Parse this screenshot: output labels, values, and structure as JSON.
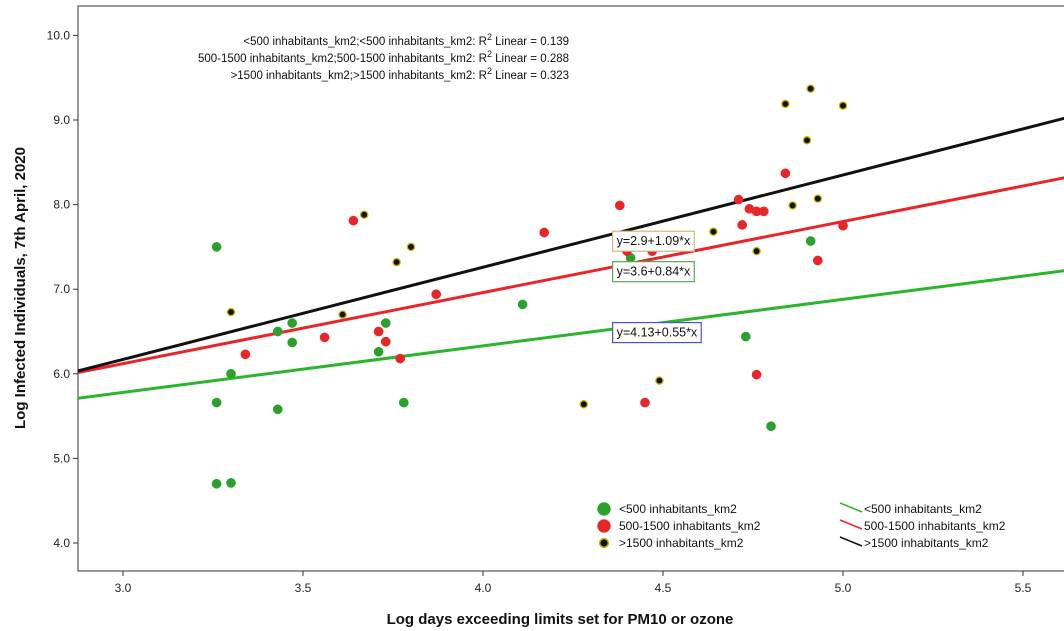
{
  "chart_data": {
    "type": "scatter",
    "xlabel": "Log days exceeding limits set for PM10 or ozone",
    "ylabel": "Log Infected Individuals, 7th April, 2020",
    "xlim": [
      2.85,
      5.6
    ],
    "ylim": [
      3.8,
      10.1
    ],
    "x_ticks": [
      "3.0",
      "3.5",
      "4.0",
      "4.5",
      "5.0",
      "5.5"
    ],
    "y_ticks": [
      "4.0",
      "5.0",
      "6.0",
      "7.0",
      "8.0",
      "9.0",
      "10.0"
    ],
    "grid": false,
    "legend_position": "bottom-right",
    "r2_annotations": [
      {
        "text": "<500 inhabitants_km2;<500 inhabitants_km2: R",
        "sup": "2",
        "tail": " Linear = 0.139"
      },
      {
        "text": "500-1500 inhabitants_km2;500-1500 inhabitants_km2: R",
        "sup": "2",
        "tail": " Linear = 0.288"
      },
      {
        "text": ">1500 inhabitants_km2;>1500 inhabitants_km2: R",
        "sup": "2",
        "tail": " Linear = 0.323"
      }
    ],
    "series": [
      {
        "name": "<500 inhabitants_km2",
        "color": "#2ca02c",
        "edge": "#2ca02c",
        "fit": {
          "intercept": 4.13,
          "slope": 0.55,
          "label": "y=4.13+0.55*x",
          "box_color": "#4a52c8",
          "label_pos": [
            4.36,
            6.44
          ],
          "line_color": "#2cb52c"
        },
        "points": [
          [
            3.26,
            7.5
          ],
          [
            3.26,
            5.66
          ],
          [
            3.26,
            4.7
          ],
          [
            3.3,
            6.0
          ],
          [
            3.3,
            4.71
          ],
          [
            3.43,
            6.5
          ],
          [
            3.43,
            5.58
          ],
          [
            3.47,
            6.6
          ],
          [
            3.47,
            6.37
          ],
          [
            3.71,
            6.26
          ],
          [
            3.73,
            6.6
          ],
          [
            3.78,
            5.66
          ],
          [
            4.11,
            6.82
          ],
          [
            4.41,
            7.37
          ],
          [
            4.73,
            6.44
          ],
          [
            4.8,
            5.38
          ],
          [
            4.91,
            7.57
          ]
        ]
      },
      {
        "name": "500-1500 inhabitants_km2",
        "color": "#e8262a",
        "edge": "#e8262a",
        "fit": {
          "intercept": 3.6,
          "slope": 0.84,
          "label": "y=3.6+0.84*x",
          "box_color": "#5aa65a",
          "label_pos": [
            4.36,
            7.16
          ],
          "line_color": "#e8262a"
        },
        "points": [
          [
            3.34,
            6.23
          ],
          [
            3.56,
            6.43
          ],
          [
            3.64,
            7.81
          ],
          [
            3.71,
            6.5
          ],
          [
            3.73,
            6.38
          ],
          [
            3.77,
            6.18
          ],
          [
            3.87,
            6.94
          ],
          [
            4.17,
            7.67
          ],
          [
            4.38,
            7.99
          ],
          [
            4.4,
            7.45
          ],
          [
            4.45,
            5.66
          ],
          [
            4.47,
            7.45
          ],
          [
            4.71,
            8.06
          ],
          [
            4.72,
            7.76
          ],
          [
            4.74,
            7.95
          ],
          [
            4.76,
            7.92
          ],
          [
            4.78,
            7.92
          ],
          [
            4.76,
            5.99
          ],
          [
            4.84,
            8.37
          ],
          [
            4.93,
            7.34
          ],
          [
            5.0,
            7.75
          ]
        ]
      },
      {
        "name": ">1500 inhabitants_km2",
        "color": "#111111",
        "edge": "#c8b800",
        "fit": {
          "intercept": 2.9,
          "slope": 1.09,
          "label": "y=2.9+1.09*x",
          "box_color": "#c8ba7a",
          "label_pos": [
            4.36,
            7.52
          ],
          "line_color": "#111111"
        },
        "points": [
          [
            3.3,
            6.73
          ],
          [
            3.61,
            6.7
          ],
          [
            3.67,
            7.88
          ],
          [
            3.76,
            7.32
          ],
          [
            3.8,
            7.5
          ],
          [
            4.28,
            5.64
          ],
          [
            4.49,
            5.92
          ],
          [
            4.64,
            7.68
          ],
          [
            4.76,
            7.45
          ],
          [
            4.84,
            9.19
          ],
          [
            4.86,
            7.99
          ],
          [
            4.9,
            8.76
          ],
          [
            4.91,
            9.37
          ],
          [
            4.93,
            8.07
          ],
          [
            5.0,
            9.17
          ]
        ]
      }
    ]
  }
}
